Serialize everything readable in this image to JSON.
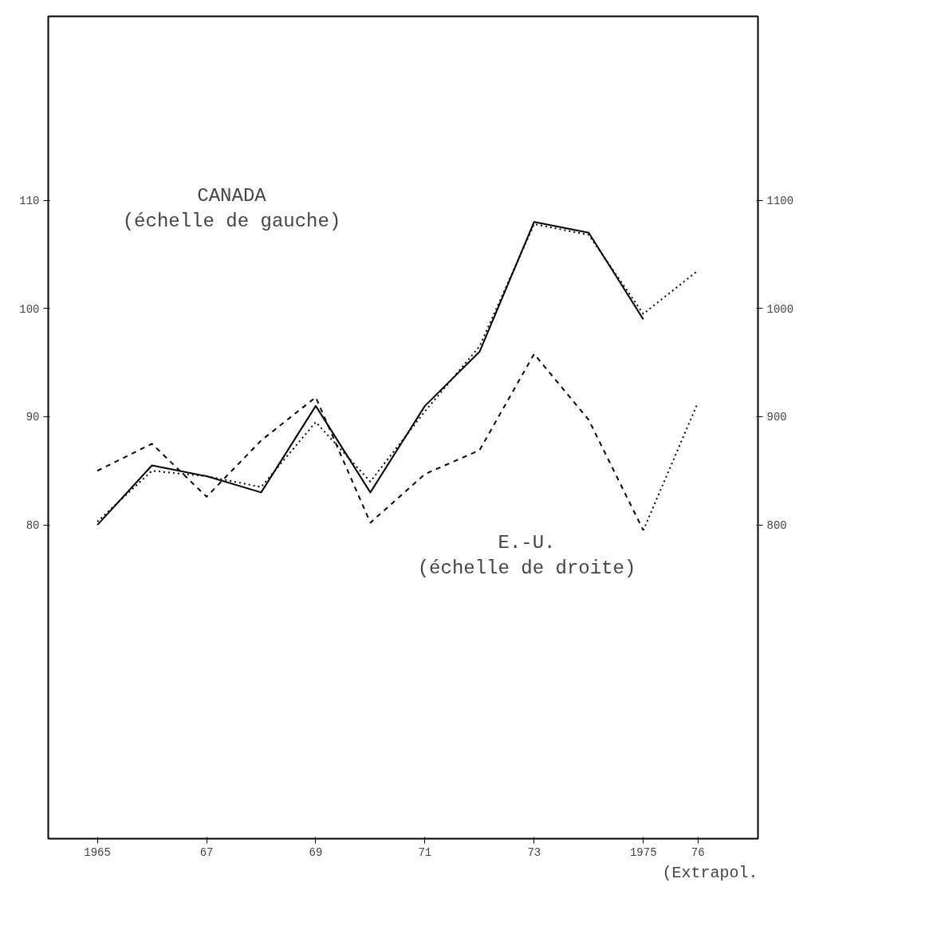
{
  "chart_data": {
    "type": "line",
    "x": [
      1965,
      1966,
      1967,
      1968,
      1969,
      1970,
      1971,
      1972,
      1973,
      1974,
      1975,
      1976
    ],
    "xlim": [
      1964.1,
      1977.1
    ],
    "xticks": [
      {
        "value": 1965,
        "label": "1965"
      },
      {
        "value": 1967,
        "label": "67"
      },
      {
        "value": 1969,
        "label": "69"
      },
      {
        "value": 1971,
        "label": "71"
      },
      {
        "value": 1973,
        "label": "73"
      },
      {
        "value": 1975,
        "label": "1975"
      },
      {
        "value": 1976,
        "label": "76"
      }
    ],
    "ylim": [
      51,
      127
    ],
    "yticks": [
      80,
      90,
      100,
      110
    ],
    "y2lim": [
      510,
      1270
    ],
    "y2ticks": [
      800,
      900,
      1000,
      1100
    ],
    "series": [
      {
        "color": "#000000",
        "line_style": "solid",
        "values": [
          80,
          85.5,
          84.5,
          83,
          91,
          83,
          91,
          96,
          108,
          107,
          99,
          null
        ]
      },
      {
        "color": "#000000",
        "line_style": "dotted",
        "values": [
          80.3,
          85,
          84.5,
          83.5,
          89.5,
          84,
          90.5,
          96.5,
          107.8,
          106.8,
          99.5,
          103.5
        ]
      },
      {
        "color": "#000000",
        "line_style": "dashed",
        "axis": "y2",
        "values": [
          850,
          875,
          826,
          878,
          918,
          802,
          847,
          869,
          958,
          897,
          795,
          null
        ]
      },
      {
        "color": "#000000",
        "line_style": "dotted",
        "axis": "y2",
        "x": [
          1975,
          1976
        ],
        "values": [
          795,
          913
        ]
      }
    ],
    "annotations": [
      "CANADA\n(échelle de gauche)",
      "E.-U.\n(échelle de droite)",
      "(Extrapol."
    ],
    "grid": false,
    "marker": "none"
  }
}
